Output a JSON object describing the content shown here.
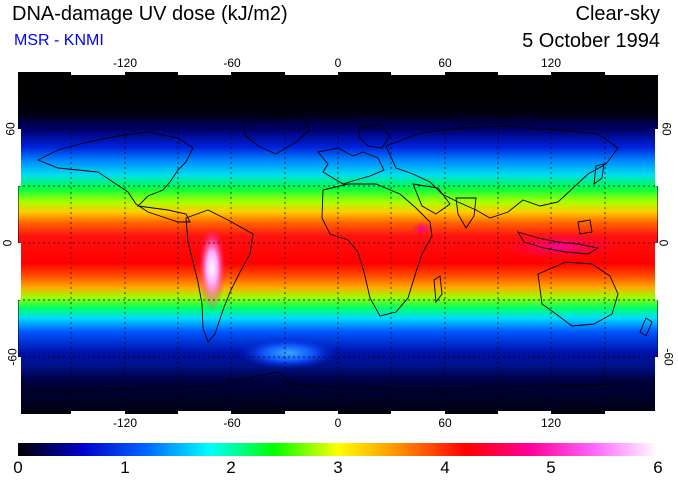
{
  "header": {
    "title": "DNA-damage UV dose (kJ/m2)",
    "subtitle": "MSR - KNMI",
    "subtitle_color": "#0000ff",
    "condition": "Clear-sky",
    "date": "5 October 1994"
  },
  "map": {
    "projection": "equirectangular",
    "lon_range": [
      -180,
      180
    ],
    "lat_range": [
      -90,
      90
    ],
    "grid": "dashed",
    "grid_interval_deg": 30,
    "lon_tick_labels": [
      "-120",
      "-60",
      "0",
      "60",
      "120"
    ],
    "lat_tick_labels": [
      "60",
      "0",
      "-60"
    ],
    "lon_tick_values": [
      -120,
      -60,
      0,
      60,
      120
    ],
    "lat_tick_values": [
      60,
      0,
      -60
    ],
    "coastlines": true
  },
  "colorbar": {
    "tick_labels": [
      "0",
      "1",
      "2",
      "3",
      "4",
      "5",
      "6"
    ],
    "tick_values": [
      0,
      1,
      2,
      3,
      4,
      5,
      6
    ],
    "range": [
      0,
      6
    ],
    "colors": [
      "#000000",
      "#0000cc",
      "#0066ff",
      "#00ffff",
      "#00ff00",
      "#ffff00",
      "#ff8800",
      "#ff0000",
      "#ff0099",
      "#ff66ff",
      "#ffffff"
    ]
  }
}
